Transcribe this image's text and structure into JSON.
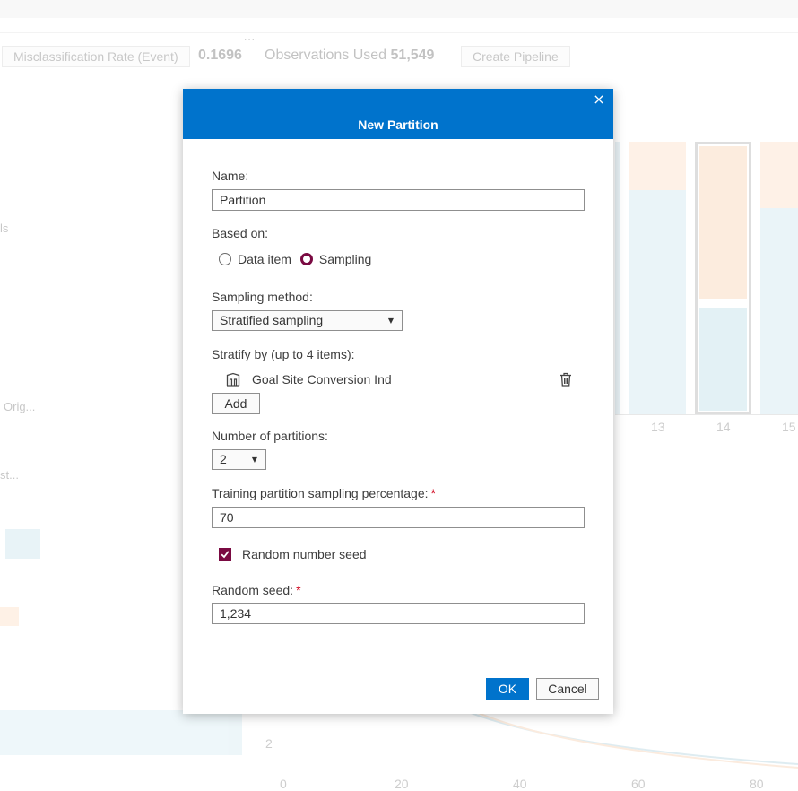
{
  "background": {
    "dots": "...",
    "misclassification_btn": "Misclassification Rate (Event)",
    "metric_value": "0.1696",
    "observations_label": "Observations Used",
    "observations_value": "51,549",
    "create_pipeline_btn": "Create Pipeline",
    "side_text_1": "ls",
    "side_text_2": "Orig...",
    "side_text_3": "st...",
    "bar_axis_labels": [
      "13",
      "14",
      "15"
    ],
    "chart_y_label": "2",
    "chart_x_labels": [
      "0",
      "20",
      "40",
      "60",
      "80"
    ]
  },
  "dialog": {
    "title": "New Partition",
    "close_icon": "×",
    "name_label": "Name:",
    "name_value": "Partition",
    "based_on_label": "Based on:",
    "based_on_options": [
      {
        "label": "Data item",
        "selected": false
      },
      {
        "label": "Sampling",
        "selected": true
      }
    ],
    "sampling_method_label": "Sampling method:",
    "sampling_method_value": "Stratified sampling",
    "stratify_label": "Stratify by (up to 4 items):",
    "stratify_items": [
      {
        "name": "Goal Site Conversion Ind",
        "icon": "category-variable-icon"
      }
    ],
    "add_button": "Add",
    "num_partitions_label": "Number of partitions:",
    "num_partitions_value": "2",
    "training_pct_label": "Training partition sampling percentage:",
    "training_pct_value": "70",
    "required_marker": "*",
    "random_seed_checkbox_label": "Random number seed",
    "random_seed_checked": true,
    "random_seed_label": "Random seed:",
    "random_seed_value": "1,234",
    "ok_button": "OK",
    "cancel_button": "Cancel",
    "accent_color": "#0073cc",
    "selection_color": "#7a0a42"
  }
}
